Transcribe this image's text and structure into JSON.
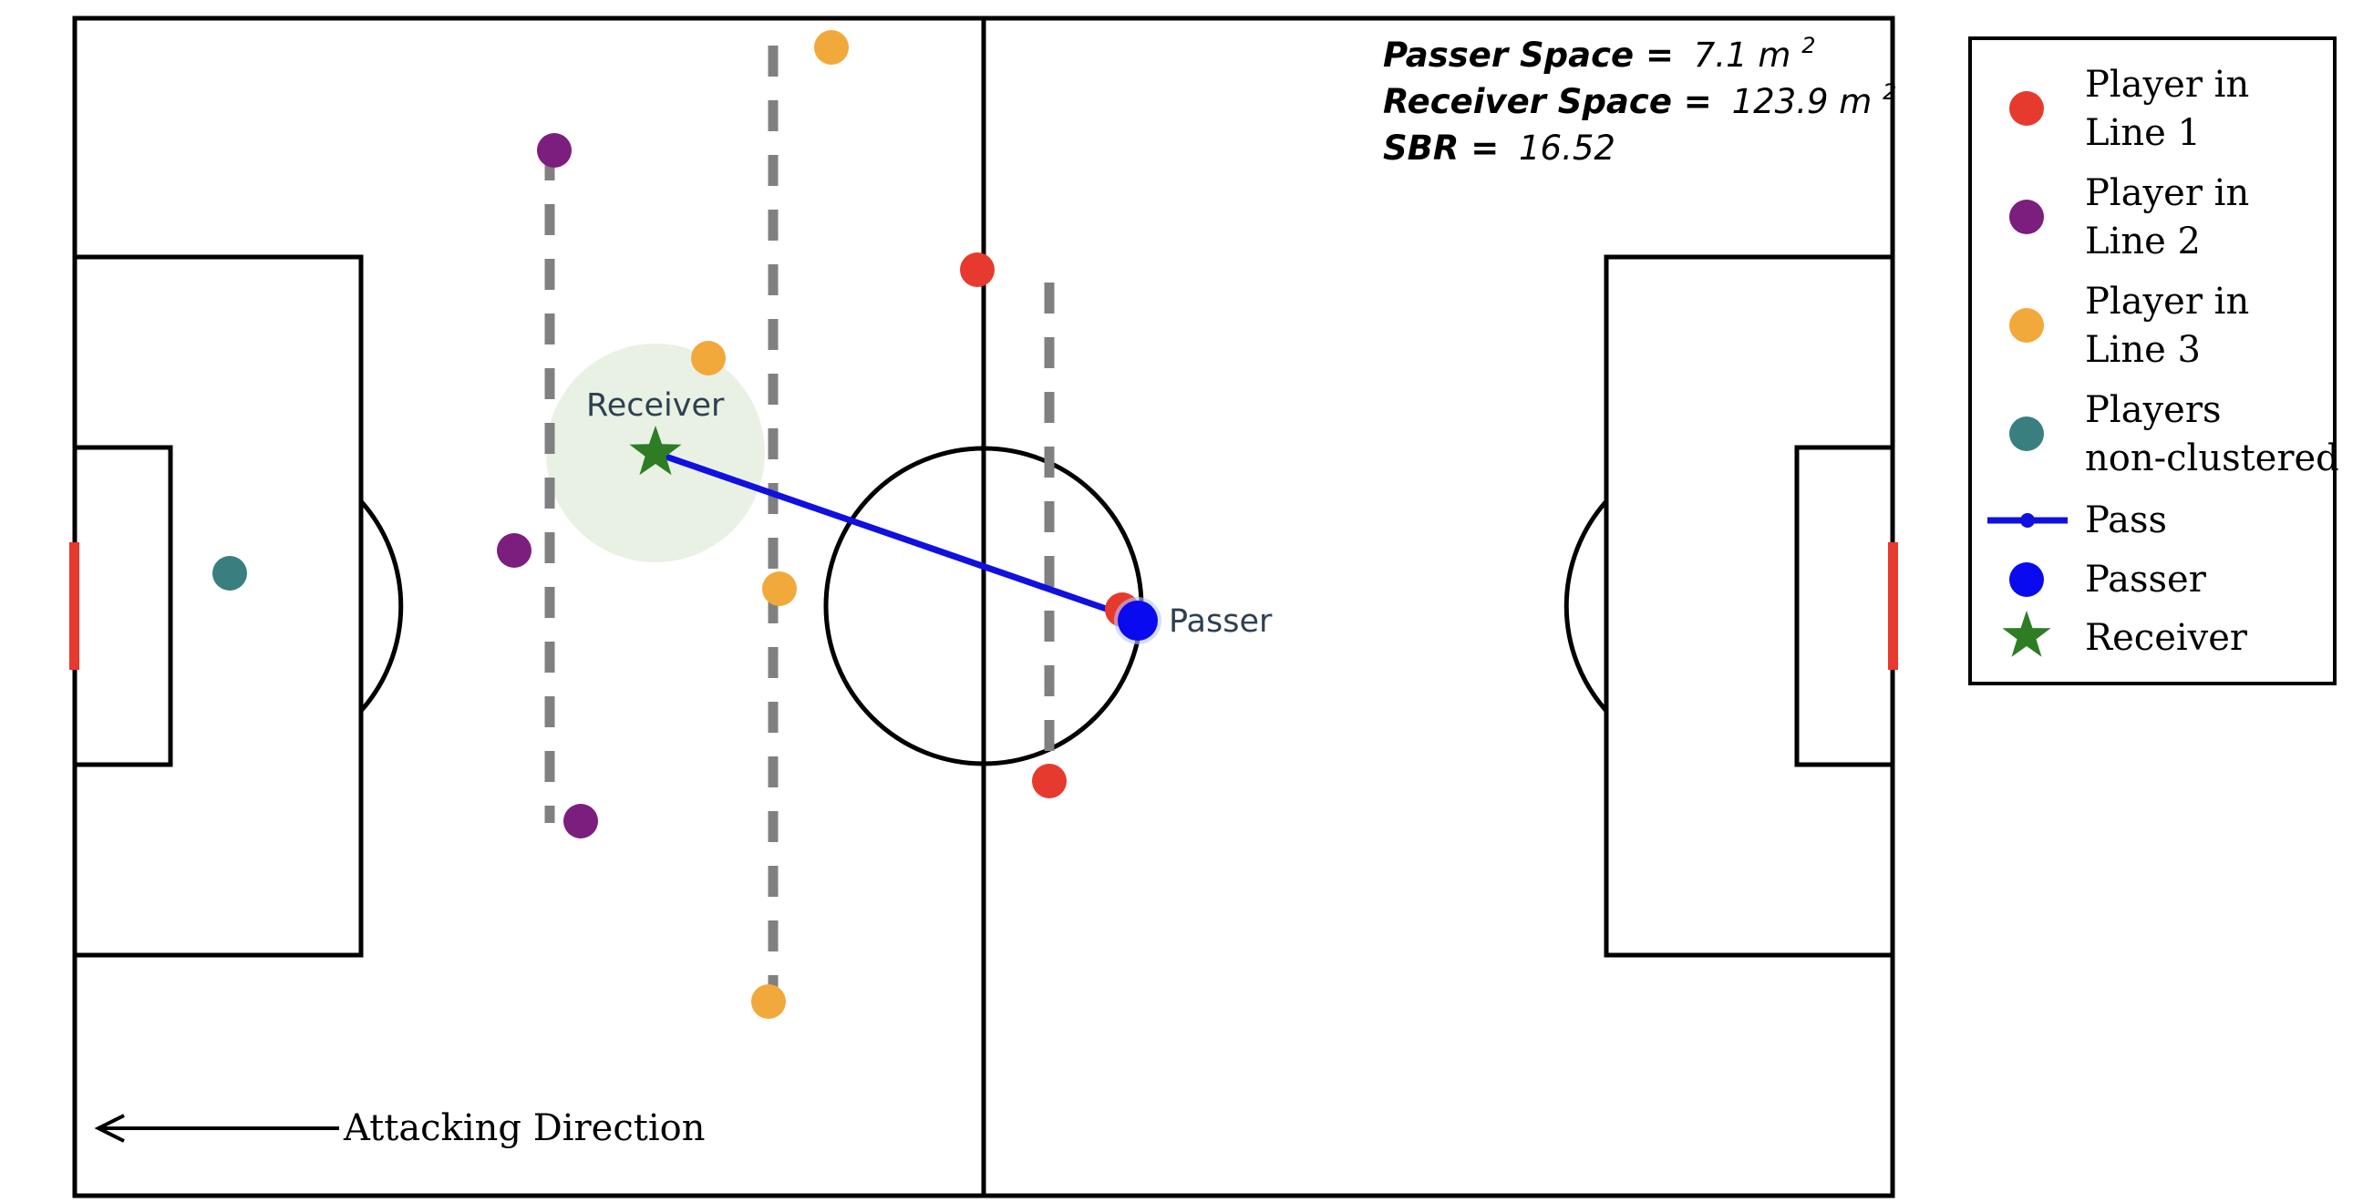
{
  "stats": {
    "passer_space_label": "Passer Space =",
    "passer_space_value": "7.1 m",
    "passer_space_unit_exp": "2",
    "receiver_space_label": "Receiver Space =",
    "receiver_space_value": "123.9 m",
    "receiver_space_unit_exp": "2",
    "sbr_label": "SBR =",
    "sbr_value": "16.52"
  },
  "labels": {
    "receiver": "Receiver",
    "passer": "Passer",
    "attacking_direction": "Attacking Direction"
  },
  "legend": {
    "items": [
      {
        "lines": [
          "Player in",
          "Line 1"
        ],
        "marker": "circle",
        "color": "#e63a2e"
      },
      {
        "lines": [
          "Player in",
          "Line 2"
        ],
        "marker": "circle",
        "color": "#7b1e7e"
      },
      {
        "lines": [
          "Player in",
          "Line 3"
        ],
        "marker": "circle",
        "color": "#f2a93b"
      },
      {
        "lines": [
          "Players",
          "non-clustered"
        ],
        "marker": "circle",
        "color": "#3a7f80"
      },
      {
        "lines": [
          "Pass"
        ],
        "marker": "line",
        "color": "#1010e0"
      },
      {
        "lines": [
          "Passer"
        ],
        "marker": "circle",
        "color": "#0a0af0"
      },
      {
        "lines": [
          "Receiver"
        ],
        "marker": "star",
        "color": "#2e7d25"
      }
    ]
  },
  "colors": {
    "line1": "#e63a2e",
    "line2": "#7b1e7e",
    "line3": "#f2a93b",
    "non_clustered": "#3a7f80",
    "pass": "#1010e0",
    "passer": "#0a0af0",
    "receiver": "#2e7d25",
    "goal": "#e8392e",
    "line_divider": "#808080",
    "receiver_space": "#e5efe0"
  }
}
